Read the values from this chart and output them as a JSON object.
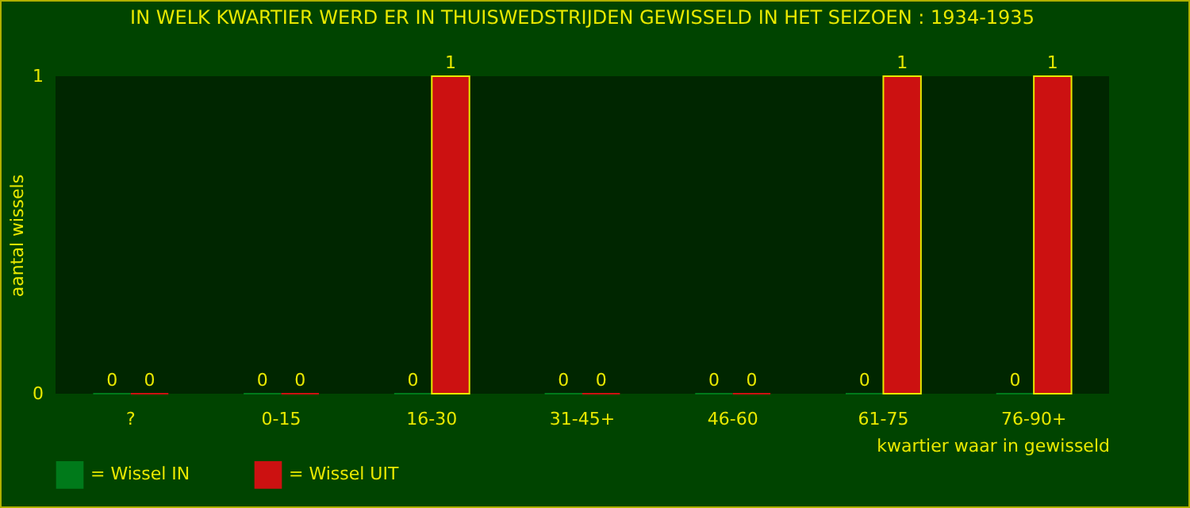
{
  "chart_data": {
    "type": "bar",
    "title": "IN WELK KWARTIER WERD ER IN THUISWEDSTRIJDEN GEWISSELD IN HET SEIZOEN : 1934-1935",
    "xlabel": "kwartier waar in gewisseld",
    "ylabel": "aantal wissels",
    "categories": [
      "?",
      "0-15",
      "16-30",
      "31-45+",
      "46-60",
      "61-75",
      "76-90+"
    ],
    "series": [
      {
        "name": "= Wissel IN",
        "color": "#007a1a",
        "values": [
          0,
          0,
          0,
          0,
          0,
          0,
          0
        ]
      },
      {
        "name": "= Wissel UIT",
        "color": "#cc1111",
        "values": [
          0,
          0,
          1,
          0,
          0,
          1,
          1
        ]
      }
    ],
    "ylim": [
      0,
      1
    ],
    "yticks": [
      0,
      1
    ],
    "data_labels": true,
    "legend": "bottom",
    "grid": false
  }
}
